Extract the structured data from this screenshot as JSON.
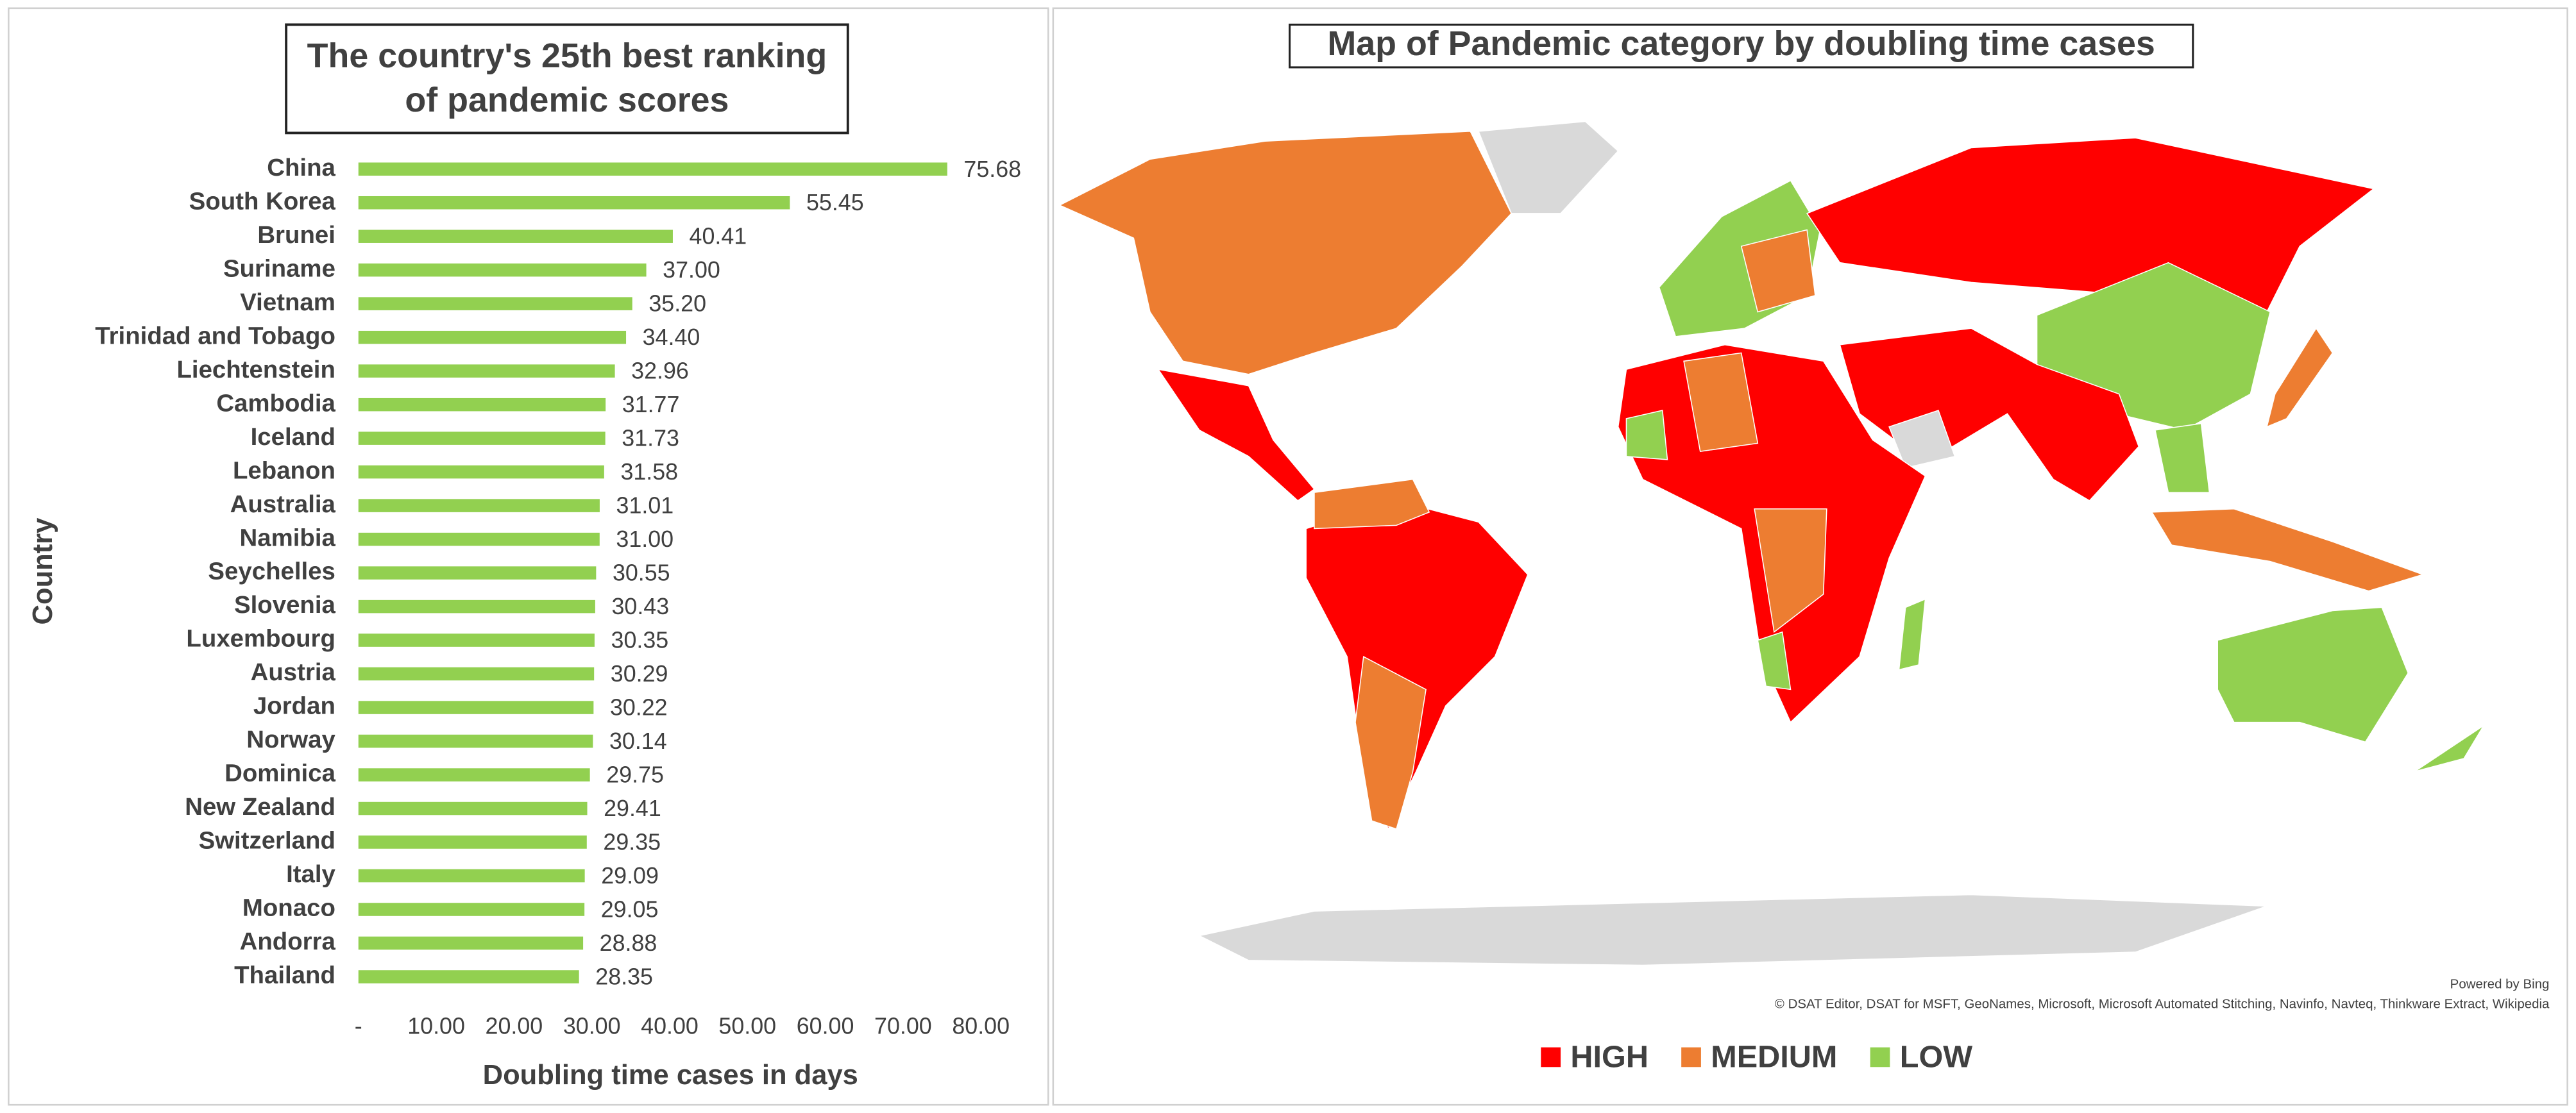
{
  "chart_data": [
    {
      "type": "bar",
      "title": "The country's 25th best ranking of pandemic scores",
      "x_label": "Doubling time cases in  days",
      "y_label": "Country",
      "categories": [
        "China",
        "South Korea",
        "Brunei",
        "Suriname",
        "Vietnam",
        "Trinidad and Tobago",
        "Liechtenstein",
        "Cambodia",
        "Iceland",
        "Lebanon",
        "Australia",
        "Namibia",
        "Seychelles",
        "Slovenia",
        "Luxembourg",
        "Austria",
        "Jordan",
        "Norway",
        "Dominica",
        "New Zealand",
        "Switzerland",
        "Italy",
        "Monaco",
        "Andorra",
        "Thailand"
      ],
      "values": [
        75.68,
        55.45,
        40.41,
        37.0,
        35.2,
        34.4,
        32.96,
        31.77,
        31.73,
        31.58,
        31.01,
        31.0,
        30.55,
        30.43,
        30.35,
        30.29,
        30.22,
        30.14,
        29.75,
        29.41,
        29.35,
        29.09,
        29.05,
        28.88,
        28.35
      ],
      "value_labels": [
        "75.68",
        "55.45",
        "40.41",
        "37.00",
        "35.20",
        "34.40",
        "32.96",
        "31.77",
        "31.73",
        "31.58",
        "31.01",
        "31.00",
        "30.55",
        "30.43",
        "30.35",
        "30.29",
        "30.22",
        "30.14",
        "29.75",
        "29.41",
        "29.35",
        "29.09",
        "29.05",
        "28.88",
        "28.35"
      ],
      "color": "#92d050",
      "xlim": [
        0,
        80
      ],
      "xticks": [
        {
          "value": 0,
          "label": "-"
        },
        {
          "value": 10,
          "label": "10.00"
        },
        {
          "value": 20,
          "label": "20.00"
        },
        {
          "value": 30,
          "label": "30.00"
        },
        {
          "value": 40,
          "label": "40.00"
        },
        {
          "value": 50,
          "label": "50.00"
        },
        {
          "value": 60,
          "label": "60.00"
        },
        {
          "value": 70,
          "label": "70.00"
        },
        {
          "value": 80,
          "label": "80.00"
        }
      ]
    },
    {
      "type": "map",
      "title": "Map of Pandemic category by doubling time cases",
      "legend": [
        {
          "name": "HIGH",
          "color": "#ff0000"
        },
        {
          "name": "MEDIUM",
          "color": "#ed7d31"
        },
        {
          "name": "LOW",
          "color": "#92d050"
        }
      ],
      "credit": "Powered by Bing",
      "attribution": "© DSAT Editor, DSAT for MSFT, GeoNames, Microsoft, Microsoft Automated Stitching, Navinfo, Navteq, Thinkware Extract, Wikipedia"
    }
  ]
}
